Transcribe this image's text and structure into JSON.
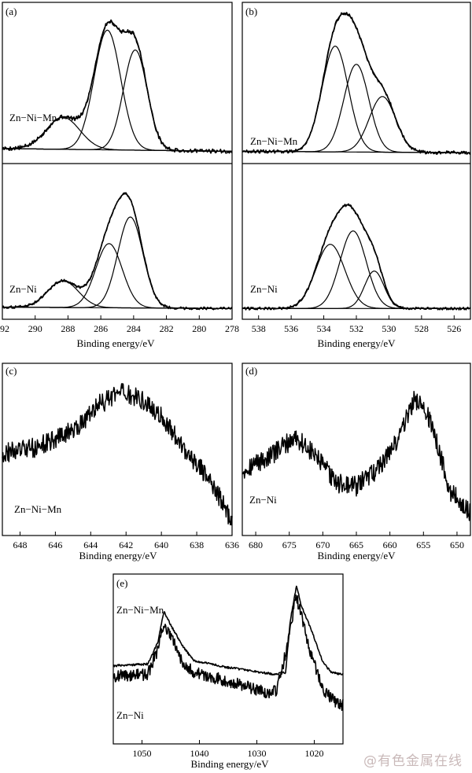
{
  "watermark": "@有色金属在线",
  "chart_data": [
    {
      "id": "a",
      "panel_label": "(a)",
      "type": "line",
      "xlabel": "Binding energy/eV",
      "xlim": [
        292,
        278
      ],
      "xticks": [
        292,
        290,
        288,
        286,
        284,
        282,
        280,
        278
      ],
      "subplots": [
        {
          "sample_label": "Zn−Ni−Mn",
          "peaks": [
            {
              "center": 288.3,
              "height": 0.23,
              "fwhm": 2.4
            },
            {
              "center": 285.6,
              "height": 0.86,
              "fwhm": 1.9
            },
            {
              "center": 283.9,
              "height": 0.72,
              "fwhm": 1.7
            }
          ],
          "background": [
            0.04,
            0.02
          ],
          "noise": 0.015
        },
        {
          "sample_label": "Zn−Ni",
          "peaks": [
            {
              "center": 288.3,
              "height": 0.2,
              "fwhm": 2.2
            },
            {
              "center": 285.5,
              "height": 0.48,
              "fwhm": 1.9
            },
            {
              "center": 284.2,
              "height": 0.68,
              "fwhm": 1.8
            }
          ],
          "background": [
            0.02,
            0.01
          ],
          "noise": 0.01
        }
      ]
    },
    {
      "id": "b",
      "panel_label": "(b)",
      "type": "line",
      "xlabel": "Binding energy/eV",
      "xlim": [
        539,
        525
      ],
      "xticks": [
        538,
        536,
        534,
        532,
        530,
        528,
        526
      ],
      "subplots": [
        {
          "sample_label": "Zn−Ni−Mn",
          "peaks": [
            {
              "center": 533.3,
              "height": 0.76,
              "fwhm": 1.9
            },
            {
              "center": 532.0,
              "height": 0.63,
              "fwhm": 1.8
            },
            {
              "center": 530.4,
              "height": 0.4,
              "fwhm": 1.9
            }
          ],
          "background": [
            0.02,
            0.01
          ],
          "noise": 0.012
        },
        {
          "sample_label": "Zn−Ni",
          "peaks": [
            {
              "center": 533.6,
              "height": 0.48,
              "fwhm": 2.1
            },
            {
              "center": 532.2,
              "height": 0.58,
              "fwhm": 1.9
            },
            {
              "center": 530.9,
              "height": 0.28,
              "fwhm": 1.4
            }
          ],
          "background": [
            0.01,
            0.01
          ],
          "noise": 0.01
        }
      ]
    },
    {
      "id": "c",
      "panel_label": "(c)",
      "type": "line",
      "xlabel": "Binding energy/eV",
      "xlim": [
        649,
        636
      ],
      "xticks": [
        648,
        646,
        644,
        642,
        640,
        638,
        636
      ],
      "sample_label": "Zn−Ni−Mn",
      "noise": 0.06,
      "points": [
        [
          649,
          0.48
        ],
        [
          647,
          0.52
        ],
        [
          645,
          0.62
        ],
        [
          643.5,
          0.78
        ],
        [
          642.2,
          0.85
        ],
        [
          641,
          0.8
        ],
        [
          640,
          0.7
        ],
        [
          639,
          0.55
        ],
        [
          638,
          0.42
        ],
        [
          637,
          0.28
        ],
        [
          636.2,
          0.1
        ]
      ]
    },
    {
      "id": "d",
      "panel_label": "(d)",
      "type": "line",
      "xlabel": "Binding energy/eV",
      "xlim": [
        682,
        648
      ],
      "xticks": [
        680,
        675,
        670,
        665,
        660,
        655,
        650
      ],
      "sample_label": "Zn−Ni",
      "noise": 0.06,
      "points": [
        [
          682,
          0.38
        ],
        [
          678,
          0.46
        ],
        [
          674,
          0.58
        ],
        [
          671,
          0.46
        ],
        [
          668,
          0.3
        ],
        [
          665,
          0.28
        ],
        [
          662,
          0.38
        ],
        [
          659,
          0.55
        ],
        [
          656.5,
          0.8
        ],
        [
          655,
          0.78
        ],
        [
          653,
          0.55
        ],
        [
          651,
          0.25
        ],
        [
          648,
          0.12
        ]
      ]
    },
    {
      "id": "e",
      "panel_label": "(e)",
      "type": "line",
      "xlabel": "Binding energy/eV",
      "xlim": [
        1055,
        1015
      ],
      "xticks": [
        1050,
        1040,
        1030,
        1020
      ],
      "series": [
        {
          "label": "Zn−Ni−Mn",
          "noise": 0.006,
          "points": [
            [
              1055,
              0.46
            ],
            [
              1049,
              0.47
            ],
            [
              1047.2,
              0.6
            ],
            [
              1046.2,
              0.78
            ],
            [
              1045,
              0.7
            ],
            [
              1043,
              0.58
            ],
            [
              1041,
              0.49
            ],
            [
              1035,
              0.45
            ],
            [
              1027,
              0.41
            ],
            [
              1025,
              0.42
            ],
            [
              1024.2,
              0.72
            ],
            [
              1023.1,
              0.93
            ],
            [
              1022.3,
              0.82
            ],
            [
              1020.5,
              0.67
            ],
            [
              1018.5,
              0.48
            ],
            [
              1017,
              0.42
            ],
            [
              1015,
              0.41
            ]
          ]
        },
        {
          "label": "Zn−Ni",
          "noise": 0.035,
          "points": [
            [
              1055,
              0.4
            ],
            [
              1049,
              0.41
            ],
            [
              1047.2,
              0.56
            ],
            [
              1046.2,
              0.71
            ],
            [
              1045,
              0.63
            ],
            [
              1043,
              0.49
            ],
            [
              1041,
              0.42
            ],
            [
              1035,
              0.37
            ],
            [
              1028,
              0.3
            ],
            [
              1026.5,
              0.32
            ],
            [
              1024.5,
              0.6
            ],
            [
              1023.2,
              0.88
            ],
            [
              1022.3,
              0.76
            ],
            [
              1020.5,
              0.52
            ],
            [
              1018.5,
              0.32
            ],
            [
              1016.5,
              0.25
            ],
            [
              1015,
              0.23
            ]
          ]
        }
      ]
    }
  ]
}
